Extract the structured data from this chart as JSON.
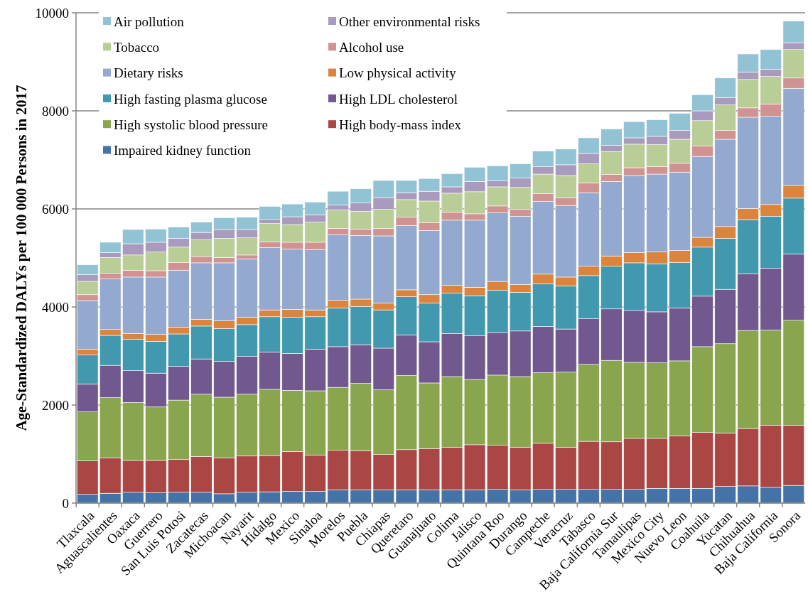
{
  "chart_data": {
    "type": "bar",
    "stacked": true,
    "ylabel": "Age-Standardized DALYs per 100 000 Persons in 2017",
    "ylim": [
      0,
      10000
    ],
    "yticks": [
      0,
      2000,
      4000,
      6000,
      8000,
      10000
    ],
    "grid": "y",
    "legend": "top left",
    "categories": [
      "Tlaxcala",
      "Aguascalientes",
      "Oaxaca",
      "Guerrero",
      "San Luis Potosi",
      "Zacatecas",
      "Michoacan",
      "Nayarit",
      "Hidalgo",
      "Mexico",
      "Sinaloa",
      "Morelos",
      "Puebla",
      "Chiapas",
      "Queretaro",
      "Guanajuato",
      "Colima",
      "Jalisco",
      "Quintana Roo",
      "Durango",
      "Campeche",
      "Veracruz",
      "Tabasco",
      "Baja California Sur",
      "Tamaulipas",
      "Mexico City",
      "Nuevo Leon",
      "Coahuila",
      "Yucatan",
      "Chihuahua",
      "Baja California",
      "Sonora"
    ],
    "series": [
      {
        "name": "Impaired kidney function",
        "color": "#4572a7",
        "values": [
          180,
          200,
          220,
          210,
          220,
          220,
          190,
          220,
          230,
          240,
          240,
          270,
          270,
          270,
          270,
          270,
          270,
          270,
          280,
          270,
          280,
          280,
          280,
          280,
          280,
          300,
          300,
          300,
          340,
          350,
          320,
          360
        ]
      },
      {
        "name": "High body-mass index",
        "color": "#aa4643",
        "values": [
          680,
          720,
          650,
          660,
          670,
          730,
          730,
          740,
          740,
          810,
          740,
          810,
          800,
          720,
          820,
          840,
          870,
          920,
          900,
          870,
          940,
          860,
          980,
          970,
          1040,
          1020,
          1070,
          1140,
          1090,
          1170,
          1270,
          1230
        ]
      },
      {
        "name": "High systolic blood pressure",
        "color": "#89a54e",
        "values": [
          1000,
          1230,
          1180,
          1090,
          1210,
          1270,
          1240,
          1260,
          1350,
          1250,
          1310,
          1280,
          1370,
          1320,
          1510,
          1340,
          1440,
          1330,
          1430,
          1440,
          1440,
          1530,
          1570,
          1660,
          1550,
          1540,
          1530,
          1750,
          1820,
          2000,
          1940,
          2140
        ]
      },
      {
        "name": "High LDL cholesterol",
        "color": "#71588f",
        "values": [
          570,
          660,
          650,
          690,
          690,
          720,
          730,
          770,
          760,
          750,
          850,
          830,
          790,
          850,
          830,
          840,
          880,
          890,
          870,
          930,
          940,
          880,
          930,
          1050,
          1060,
          1040,
          1080,
          1030,
          1110,
          1160,
          1260,
          1350
        ]
      },
      {
        "name": "High fasting plasma glucose",
        "color": "#4198af",
        "values": [
          590,
          610,
          640,
          650,
          660,
          670,
          670,
          650,
          720,
          740,
          660,
          790,
          780,
          780,
          780,
          790,
          820,
          820,
          860,
          790,
          870,
          880,
          880,
          870,
          970,
          980,
          930,
          1000,
          1040,
          1100,
          1060,
          1140
        ]
      },
      {
        "name": "Low physical activity",
        "color": "#db843d",
        "values": [
          120,
          120,
          120,
          140,
          140,
          140,
          160,
          150,
          140,
          160,
          140,
          160,
          150,
          140,
          140,
          170,
          160,
          170,
          180,
          160,
          200,
          180,
          190,
          210,
          210,
          240,
          240,
          200,
          240,
          230,
          240,
          260
        ]
      },
      {
        "name": "Dietary risks",
        "color": "#93a9cf",
        "values": [
          990,
          1030,
          1150,
          1170,
          1160,
          1150,
          1180,
          1190,
          1270,
          1230,
          1230,
          1330,
          1300,
          1370,
          1310,
          1310,
          1330,
          1370,
          1400,
          1390,
          1480,
          1460,
          1500,
          1520,
          1570,
          1590,
          1600,
          1650,
          1780,
          1860,
          1800,
          1980
        ]
      },
      {
        "name": "Alcohol use",
        "color": "#d19392",
        "values": [
          120,
          120,
          140,
          130,
          160,
          130,
          110,
          80,
          120,
          140,
          150,
          130,
          130,
          150,
          170,
          160,
          160,
          130,
          140,
          140,
          160,
          160,
          200,
          140,
          160,
          150,
          180,
          210,
          180,
          190,
          250,
          210
        ]
      },
      {
        "name": "Tobacco",
        "color": "#b9cd96",
        "values": [
          270,
          320,
          310,
          380,
          310,
          340,
          390,
          350,
          370,
          360,
          410,
          380,
          360,
          390,
          360,
          440,
          390,
          450,
          390,
          450,
          400,
          450,
          390,
          470,
          480,
          450,
          490,
          520,
          520,
          580,
          560,
          580
        ]
      },
      {
        "name": "Other environmental risks",
        "color": "#a99bbd",
        "values": [
          140,
          100,
          230,
          200,
          180,
          150,
          180,
          170,
          90,
          160,
          150,
          100,
          170,
          240,
          140,
          200,
          130,
          210,
          120,
          190,
          150,
          220,
          210,
          130,
          130,
          170,
          180,
          200,
          150,
          150,
          150,
          140
        ]
      },
      {
        "name": "Air pollution",
        "color": "#92c3d5",
        "values": [
          200,
          210,
          290,
          270,
          230,
          210,
          240,
          250,
          260,
          260,
          260,
          280,
          290,
          350,
          250,
          260,
          270,
          290,
          310,
          290,
          320,
          320,
          320,
          330,
          330,
          340,
          350,
          330,
          400,
          370,
          400,
          440
        ]
      }
    ]
  }
}
